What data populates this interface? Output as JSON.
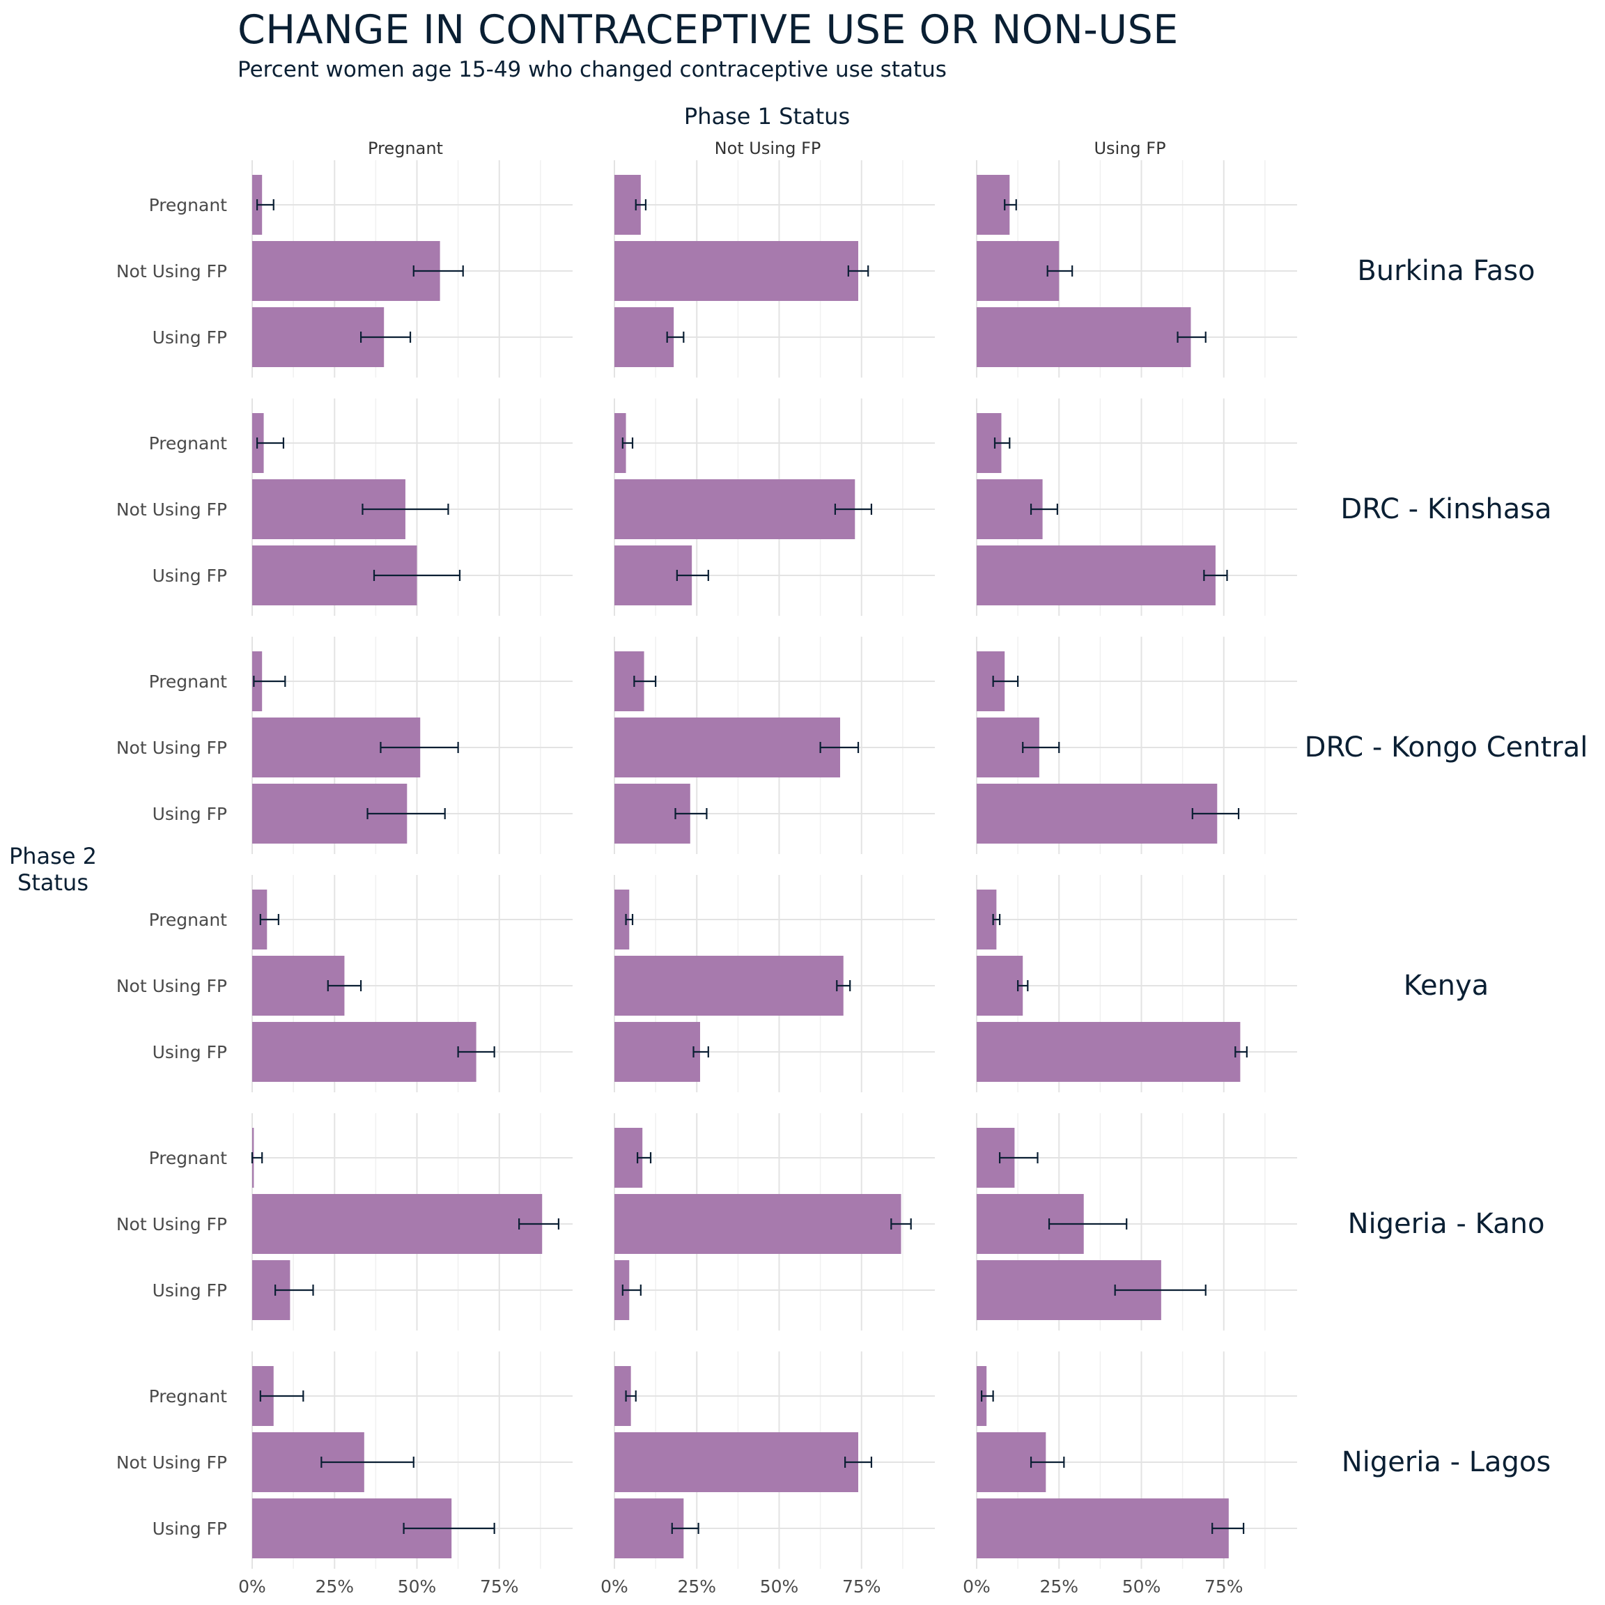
{
  "chart_data": {
    "type": "bar",
    "title": "CHANGE IN CONTRACEPTIVE USE OR NON-USE",
    "subtitle": "Percent women age 15-49 who changed contraceptive use status",
    "column_facet_title": "Phase 1 Status",
    "row_facet_title": "Phase 2\nStatus",
    "columns": [
      "Pregnant",
      "Not Using FP",
      "Using FP"
    ],
    "rows": [
      "Burkina Faso",
      "DRC - Kinshasa",
      "DRC - Kongo Central",
      "Kenya",
      "Nigeria - Kano",
      "Nigeria - Lagos"
    ],
    "categories": [
      "Pregnant",
      "Not Using FP",
      "Using FP"
    ],
    "x_ticks": [
      "0%",
      "25%",
      "50%",
      "75%"
    ],
    "xlim": [
      0,
      100
    ],
    "units": "percent",
    "grid": true,
    "bar_color": "#a77aad",
    "error_bar_color": "#0a1f33",
    "panels": [
      {
        "country": "Burkina Faso",
        "phase1": "Pregnant",
        "values": [
          3,
          57,
          40
        ],
        "ci_low": [
          1.5,
          49,
          33
        ],
        "ci_high": [
          6.5,
          64,
          48
        ]
      },
      {
        "country": "Burkina Faso",
        "phase1": "Not Using FP",
        "values": [
          8,
          74,
          18
        ],
        "ci_low": [
          6.5,
          71,
          16
        ],
        "ci_high": [
          9.5,
          77,
          21
        ]
      },
      {
        "country": "Burkina Faso",
        "phase1": "Using FP",
        "values": [
          10,
          25,
          65
        ],
        "ci_low": [
          8.5,
          21.5,
          61
        ],
        "ci_high": [
          12,
          29,
          69.5
        ]
      },
      {
        "country": "DRC - Kinshasa",
        "phase1": "Pregnant",
        "values": [
          3.5,
          46.5,
          50
        ],
        "ci_low": [
          1.5,
          33.5,
          37
        ],
        "ci_high": [
          9.5,
          59.5,
          63
        ]
      },
      {
        "country": "DRC - Kinshasa",
        "phase1": "Not Using FP",
        "values": [
          3.5,
          73,
          23.5
        ],
        "ci_low": [
          2.5,
          67,
          19
        ],
        "ci_high": [
          5.5,
          78,
          28.5
        ]
      },
      {
        "country": "DRC - Kinshasa",
        "phase1": "Using FP",
        "values": [
          7.5,
          20,
          72.5
        ],
        "ci_low": [
          5.5,
          16.5,
          69
        ],
        "ci_high": [
          10,
          24.5,
          76
        ]
      },
      {
        "country": "DRC - Kongo Central",
        "phase1": "Pregnant",
        "values": [
          3,
          51,
          47
        ],
        "ci_low": [
          0.5,
          39,
          35
        ],
        "ci_high": [
          10,
          62.5,
          58.5
        ]
      },
      {
        "country": "DRC - Kongo Central",
        "phase1": "Not Using FP",
        "values": [
          9,
          68.5,
          23
        ],
        "ci_low": [
          6,
          62.5,
          18.5
        ],
        "ci_high": [
          12.5,
          74,
          28
        ]
      },
      {
        "country": "DRC - Kongo Central",
        "phase1": "Using FP",
        "values": [
          8.5,
          19,
          73
        ],
        "ci_low": [
          5,
          14,
          65.5
        ],
        "ci_high": [
          12.5,
          25,
          79.5
        ]
      },
      {
        "country": "Kenya",
        "phase1": "Pregnant",
        "values": [
          4.5,
          28,
          68
        ],
        "ci_low": [
          2.5,
          23,
          62.5
        ],
        "ci_high": [
          8,
          33,
          73.5
        ]
      },
      {
        "country": "Kenya",
        "phase1": "Not Using FP",
        "values": [
          4.5,
          69.5,
          26
        ],
        "ci_low": [
          3.5,
          67.5,
          24
        ],
        "ci_high": [
          5.5,
          71.5,
          28.5
        ]
      },
      {
        "country": "Kenya",
        "phase1": "Using FP",
        "values": [
          6,
          14,
          80
        ],
        "ci_low": [
          5,
          12.5,
          78.5
        ],
        "ci_high": [
          7,
          15.5,
          82
        ]
      },
      {
        "country": "Nigeria - Kano",
        "phase1": "Pregnant",
        "values": [
          0.5,
          88,
          11.5
        ],
        "ci_low": [
          0,
          81,
          7
        ],
        "ci_high": [
          3,
          93,
          18.5
        ]
      },
      {
        "country": "Nigeria - Kano",
        "phase1": "Not Using FP",
        "values": [
          8.5,
          87,
          4.5
        ],
        "ci_low": [
          7,
          84,
          2.5
        ],
        "ci_high": [
          11,
          90,
          8
        ]
      },
      {
        "country": "Nigeria - Kano",
        "phase1": "Using FP",
        "values": [
          11.5,
          32.5,
          56
        ],
        "ci_low": [
          7,
          22,
          42
        ],
        "ci_high": [
          18.5,
          45.5,
          69.5
        ]
      },
      {
        "country": "Nigeria - Lagos",
        "phase1": "Pregnant",
        "values": [
          6.5,
          34,
          60.5
        ],
        "ci_low": [
          2.5,
          21,
          46
        ],
        "ci_high": [
          15.5,
          49,
          73.5
        ]
      },
      {
        "country": "Nigeria - Lagos",
        "phase1": "Not Using FP",
        "values": [
          5,
          74,
          21
        ],
        "ci_low": [
          3.5,
          70,
          17.5
        ],
        "ci_high": [
          6.5,
          78,
          25.5
        ]
      },
      {
        "country": "Nigeria - Lagos",
        "phase1": "Using FP",
        "values": [
          3,
          21,
          76.5
        ],
        "ci_low": [
          1.5,
          16.5,
          71.5
        ],
        "ci_high": [
          5,
          26.5,
          81
        ]
      }
    ]
  }
}
